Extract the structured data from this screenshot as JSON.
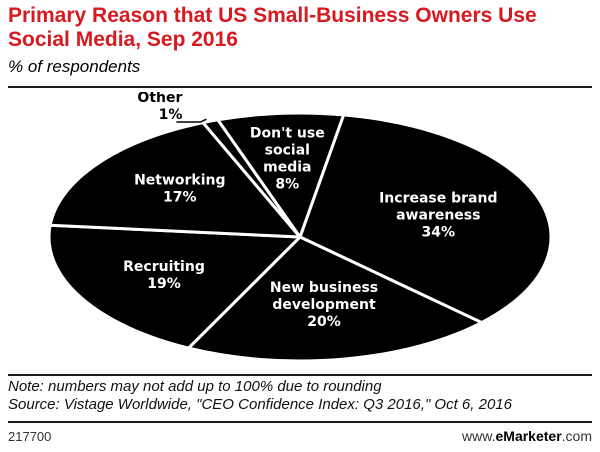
{
  "header": {
    "title": "Primary Reason that US Small-Business Owners Use Social Media, Sep 2016",
    "subtitle": "% of respondents"
  },
  "chart_data": {
    "type": "pie",
    "categories": [
      "Increase brand awareness",
      "New business development",
      "Recruiting",
      "Networking",
      "Other",
      "Don't use social media"
    ],
    "values": [
      34,
      20,
      19,
      17,
      1,
      8
    ],
    "value_labels": [
      "34%",
      "20%",
      "19%",
      "17%",
      "1%",
      "8%"
    ],
    "slice_color": "#000000",
    "border_color": "#ffffff",
    "label_color": "#ffffff"
  },
  "footer": {
    "note": "Note: numbers may not add up to 100% due to rounding",
    "source": "Source: Vistage Worldwide, \"CEO Confidence Index: Q3 2016,\" Oct 6, 2016",
    "chart_id": "217700",
    "brand_prefix": "www.",
    "brand_name": "eMarketer",
    "brand_suffix": ".com"
  },
  "colors": {
    "title": "#d71920",
    "text": "#000000"
  }
}
